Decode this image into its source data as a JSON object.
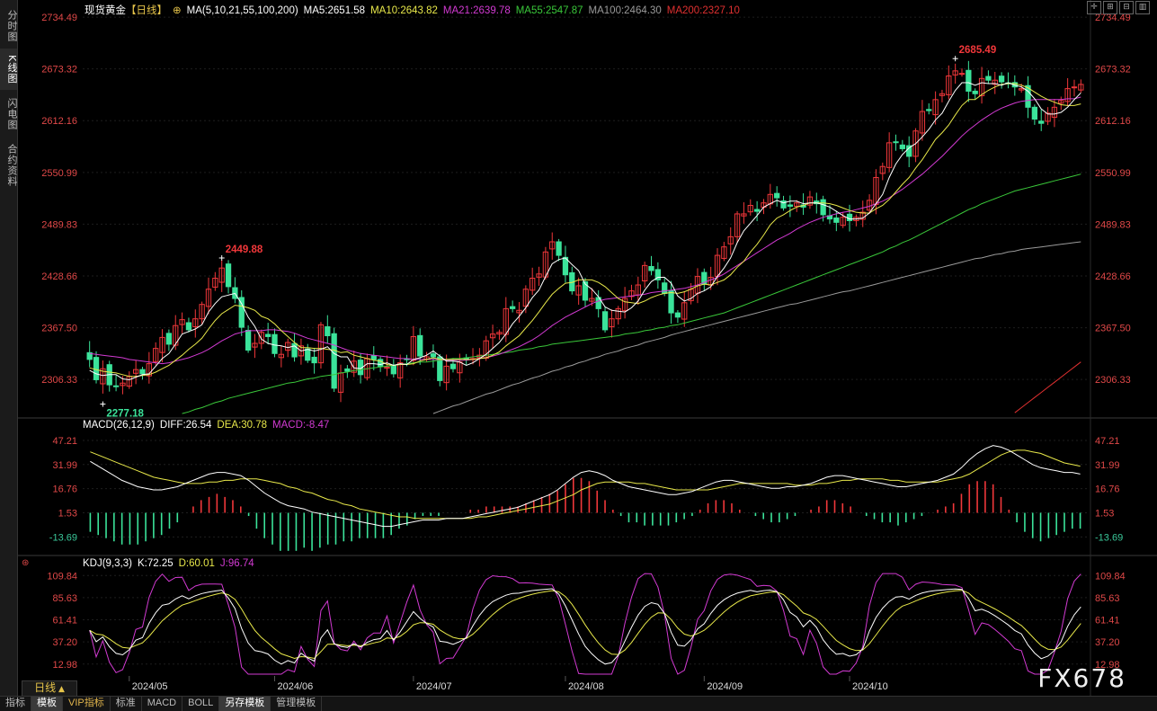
{
  "sidebar": {
    "tabs": [
      {
        "label": "分时图",
        "active": false
      },
      {
        "label": "K线图",
        "active": true
      },
      {
        "label": "闪电图",
        "active": false
      },
      {
        "label": "合约资料",
        "active": false
      }
    ]
  },
  "header": {
    "symbol": "现货黄金",
    "period": "【日线】",
    "ma_params": "MA(5,10,21,55,100,200)",
    "ma5": "MA5:2651.58",
    "ma10": "MA10:2643.82",
    "ma21": "MA21:2639.78",
    "ma55": "MA55:2547.87",
    "ma100": "MA100:2464.30",
    "ma200": "MA200:2327.10"
  },
  "macd_legend": {
    "params": "MACD(26,12,9)",
    "diff": "DIFF:26.54",
    "dea": "DEA:30.78",
    "macd": "MACD:-8.47"
  },
  "kdj_legend": {
    "params": "KDJ(9,3,3)",
    "k": "K:72.25",
    "d": "D:60.01",
    "j": "J:96.74"
  },
  "price_axis": [
    "2734.49",
    "2673.32",
    "2612.16",
    "2550.99",
    "2489.83",
    "2428.66",
    "2367.50",
    "2306.33"
  ],
  "macd_axis": [
    "47.21",
    "31.99",
    "16.76",
    "1.53",
    "-13.69"
  ],
  "kdj_axis": [
    "109.84",
    "85.63",
    "61.41",
    "37.20",
    "12.98"
  ],
  "months": [
    "2024/05",
    "2024/06",
    "2024/07",
    "2024/08",
    "2024/09",
    "2024/10"
  ],
  "annotations": {
    "high": "2685.49",
    "low": "2277.18",
    "mid_high": "2449.88"
  },
  "bottom_tabs": [
    {
      "label": "指标",
      "active": false,
      "vip": false
    },
    {
      "label": "模板",
      "active": true,
      "vip": false
    },
    {
      "label": "VIP指标",
      "active": false,
      "vip": true
    },
    {
      "label": "标准",
      "active": false,
      "vip": false
    },
    {
      "label": "MACD",
      "active": false,
      "vip": false
    },
    {
      "label": "BOLL",
      "active": false,
      "vip": false
    },
    {
      "label": "另存模板",
      "active": true,
      "vip": false
    },
    {
      "label": "管理模板",
      "active": false,
      "vip": false
    }
  ],
  "period_label": "日线",
  "watermark": "FX678",
  "colors": {
    "up": "#f0373a",
    "down": "#3be39a",
    "ma5": "#ffffff",
    "ma10": "#e8e84a",
    "ma21": "#d23ad2",
    "ma55": "#3ac83a",
    "ma100": "#9a9a9a",
    "ma200": "#e03030",
    "axis_text": "#e04848",
    "grid": "#1e1e1e"
  },
  "chart_data": {
    "type": "candlestick",
    "price_range": [
      2277.18,
      2734.49
    ],
    "closes": [
      2330,
      2306,
      2319,
      2300,
      2298,
      2302,
      2310,
      2318,
      2313,
      2325,
      2343,
      2356,
      2348,
      2370,
      2377,
      2365,
      2378,
      2395,
      2413,
      2426,
      2438,
      2416,
      2402,
      2368,
      2341,
      2349,
      2362,
      2357,
      2337,
      2336,
      2350,
      2333,
      2346,
      2329,
      2326,
      2371,
      2358,
      2296,
      2314,
      2316,
      2328,
      2312,
      2331,
      2330,
      2322,
      2321,
      2313,
      2326,
      2330,
      2357,
      2334,
      2333,
      2333,
      2305,
      2322,
      2319,
      2327,
      2331,
      2331,
      2335,
      2352,
      2360,
      2362,
      2390,
      2390,
      2388,
      2413,
      2426,
      2431,
      2457,
      2469,
      2453,
      2430,
      2411,
      2417,
      2400,
      2402,
      2390,
      2365,
      2378,
      2390,
      2402,
      2411,
      2418,
      2441,
      2435,
      2424,
      2408,
      2385,
      2380,
      2397,
      2413,
      2428,
      2419,
      2427,
      2453,
      2463,
      2475,
      2502,
      2502,
      2512,
      2505,
      2515,
      2525,
      2521,
      2509,
      2511,
      2515,
      2510,
      2522,
      2514,
      2501,
      2496,
      2492,
      2498,
      2494,
      2498,
      2504,
      2518,
      2545,
      2558,
      2586,
      2587,
      2579,
      2570,
      2600,
      2623,
      2624,
      2637,
      2644,
      2665,
      2671,
      2668,
      2647,
      2644,
      2662,
      2660,
      2660,
      2658,
      2656,
      2652,
      2650,
      2628,
      2614,
      2609,
      2621,
      2628,
      2636,
      2650,
      2652,
      2655
    ],
    "ma5": [
      2317,
      2313,
      2311,
      2312,
      2312,
      2307,
      2306,
      2309,
      2312,
      2313,
      2322,
      2331,
      2337,
      2348,
      2360,
      2363,
      2366,
      2371,
      2386,
      2396,
      2404,
      2406,
      2408,
      2396,
      2380,
      2369,
      2354,
      2349,
      2347,
      2346,
      2344,
      2346,
      2340,
      2342,
      2340,
      2342,
      2345,
      2337,
      2333,
      2333,
      2320,
      2319,
      2325,
      2325,
      2324,
      2326,
      2323,
      2325,
      2324,
      2330,
      2332,
      2335,
      2340,
      2334,
      2328,
      2328,
      2327,
      2323,
      2326,
      2331,
      2336,
      2343,
      2350,
      2360,
      2372,
      2381,
      2391,
      2403,
      2412,
      2428,
      2443,
      2448,
      2450,
      2442,
      2435,
      2419,
      2413,
      2404,
      2392,
      2388,
      2387,
      2386,
      2391,
      2399,
      2412,
      2422,
      2427,
      2427,
      2420,
      2405,
      2399,
      2402,
      2408,
      2411,
      2416,
      2428,
      2438,
      2450,
      2468,
      2482,
      2491,
      2500,
      2510,
      2514,
      2518,
      2515,
      2517,
      2517,
      2514,
      2515,
      2515,
      2513,
      2510,
      2505,
      2500,
      2496,
      2496,
      2497,
      2503,
      2514,
      2525,
      2545,
      2561,
      2572,
      2580,
      2585,
      2593,
      2602,
      2613,
      2621,
      2635,
      2648,
      2657,
      2657,
      2654,
      2657,
      2656,
      2656,
      2654,
      2657,
      2654,
      2652,
      2647,
      2638,
      2626,
      2620,
      2620,
      2622,
      2628,
      2637,
      2645
    ],
    "ma10": [
      2320,
      2318,
      2316,
      2315,
      2314,
      2312,
      2310,
      2310,
      2311,
      2312,
      2315,
      2319,
      2323,
      2329,
      2335,
      2342,
      2348,
      2355,
      2366,
      2376,
      2384,
      2389,
      2394,
      2393,
      2391,
      2388,
      2381,
      2378,
      2372,
      2364,
      2357,
      2350,
      2344,
      2344,
      2343,
      2343,
      2342,
      2341,
      2338,
      2339,
      2335,
      2333,
      2331,
      2329,
      2328,
      2324,
      2323,
      2324,
      2324,
      2325,
      2328,
      2330,
      2332,
      2330,
      2330,
      2330,
      2330,
      2330,
      2330,
      2331,
      2332,
      2335,
      2339,
      2346,
      2352,
      2358,
      2367,
      2376,
      2386,
      2397,
      2407,
      2414,
      2420,
      2421,
      2424,
      2424,
      2424,
      2421,
      2416,
      2409,
      2402,
      2398,
      2397,
      2396,
      2399,
      2403,
      2406,
      2408,
      2409,
      2408,
      2410,
      2413,
      2417,
      2419,
      2418,
      2421,
      2424,
      2430,
      2439,
      2446,
      2457,
      2466,
      2477,
      2489,
      2497,
      2501,
      2506,
      2510,
      2512,
      2515,
      2515,
      2515,
      2514,
      2512,
      2509,
      2506,
      2504,
      2503,
      2503,
      2508,
      2512,
      2519,
      2528,
      2537,
      2545,
      2556,
      2566,
      2578,
      2590,
      2598,
      2607,
      2619,
      2630,
      2637,
      2637,
      2643,
      2648,
      2652,
      2655,
      2656,
      2656,
      2654,
      2651,
      2646,
      2641,
      2637,
      2634,
      2631,
      2630,
      2630,
      2632
    ],
    "ma21": [
      2337,
      2336,
      2335,
      2334,
      2333,
      2332,
      2330,
      2329,
      2328,
      2327,
      2326,
      2325,
      2326,
      2328,
      2330,
      2332,
      2335,
      2338,
      2342,
      2347,
      2352,
      2356,
      2360,
      2362,
      2364,
      2364,
      2364,
      2365,
      2365,
      2364,
      2363,
      2361,
      2358,
      2355,
      2353,
      2351,
      2349,
      2347,
      2344,
      2341,
      2339,
      2337,
      2336,
      2335,
      2334,
      2333,
      2332,
      2331,
      2331,
      2330,
      2330,
      2330,
      2330,
      2330,
      2329,
      2329,
      2329,
      2329,
      2330,
      2331,
      2332,
      2334,
      2336,
      2339,
      2342,
      2345,
      2349,
      2353,
      2358,
      2364,
      2370,
      2375,
      2380,
      2384,
      2388,
      2392,
      2396,
      2399,
      2401,
      2402,
      2403,
      2404,
      2405,
      2406,
      2407,
      2409,
      2410,
      2411,
      2412,
      2413,
      2414,
      2416,
      2418,
      2421,
      2424,
      2427,
      2431,
      2436,
      2441,
      2446,
      2451,
      2456,
      2461,
      2466,
      2471,
      2475,
      2479,
      2484,
      2488,
      2492,
      2495,
      2498,
      2500,
      2502,
      2504,
      2505,
      2507,
      2509,
      2511,
      2514,
      2517,
      2521,
      2526,
      2531,
      2537,
      2543,
      2549,
      2556,
      2563,
      2570,
      2578,
      2586,
      2594,
      2601,
      2607,
      2613,
      2618,
      2623,
      2627,
      2630,
      2633,
      2635,
      2636,
      2637,
      2637,
      2637,
      2637,
      2637,
      2638,
      2638,
      2640
    ],
    "ma55": [
      2235,
      2237,
      2239,
      2241,
      2243,
      2245,
      2247,
      2249,
      2251,
      2253,
      2256,
      2258,
      2261,
      2263,
      2266,
      2268,
      2271,
      2273,
      2276,
      2279,
      2281,
      2284,
      2286,
      2288,
      2290,
      2292,
      2294,
      2296,
      2298,
      2300,
      2302,
      2303,
      2305,
      2307,
      2308,
      2310,
      2311,
      2312,
      2314,
      2315,
      2317,
      2318,
      2319,
      2320,
      2321,
      2322,
      2323,
      2324,
      2325,
      2326,
      2327,
      2327,
      2328,
      2329,
      2330,
      2331,
      2331,
      2332,
      2333,
      2334,
      2335,
      2336,
      2337,
      2338,
      2339,
      2341,
      2342,
      2343,
      2345,
      2346,
      2348,
      2349,
      2350,
      2351,
      2352,
      2353,
      2354,
      2355,
      2356,
      2357,
      2358,
      2360,
      2361,
      2362,
      2364,
      2365,
      2367,
      2368,
      2370,
      2371,
      2373,
      2375,
      2377,
      2379,
      2381,
      2383,
      2385,
      2388,
      2391,
      2394,
      2397,
      2400,
      2403,
      2406,
      2409,
      2412,
      2415,
      2418,
      2421,
      2424,
      2427,
      2430,
      2433,
      2436,
      2439,
      2442,
      2445,
      2448,
      2451,
      2454,
      2457,
      2461,
      2464,
      2468,
      2471,
      2475,
      2479,
      2483,
      2487,
      2491,
      2495,
      2499,
      2503,
      2507,
      2510,
      2514,
      2517,
      2520,
      2523,
      2526,
      2529,
      2531,
      2533,
      2535,
      2537,
      2539,
      2541,
      2543,
      2545,
      2547,
      2549
    ],
    "ma100": [
      2130,
      2132,
      2134,
      2136,
      2139,
      2141,
      2143,
      2146,
      2148,
      2150,
      2153,
      2155,
      2157,
      2160,
      2162,
      2165,
      2167,
      2170,
      2172,
      2175,
      2178,
      2180,
      2183,
      2186,
      2188,
      2191,
      2194,
      2196,
      2199,
      2202,
      2205,
      2207,
      2210,
      2213,
      2216,
      2218,
      2221,
      2224,
      2227,
      2230,
      2232,
      2235,
      2238,
      2241,
      2244,
      2246,
      2249,
      2252,
      2255,
      2258,
      2261,
      2263,
      2266,
      2269,
      2272,
      2275,
      2277,
      2280,
      2283,
      2286,
      2289,
      2291,
      2294,
      2297,
      2300,
      2302,
      2305,
      2308,
      2310,
      2313,
      2316,
      2318,
      2321,
      2323,
      2326,
      2328,
      2331,
      2333,
      2336,
      2338,
      2340,
      2343,
      2345,
      2347,
      2350,
      2352,
      2354,
      2356,
      2359,
      2361,
      2363,
      2365,
      2367,
      2369,
      2371,
      2373,
      2375,
      2377,
      2379,
      2381,
      2383,
      2385,
      2387,
      2389,
      2391,
      2393,
      2395,
      2396,
      2398,
      2400,
      2402,
      2404,
      2406,
      2408,
      2410,
      2411,
      2413,
      2415,
      2417,
      2419,
      2421,
      2423,
      2425,
      2427,
      2429,
      2431,
      2433,
      2435,
      2437,
      2439,
      2441,
      2443,
      2445,
      2447,
      2449,
      2450,
      2452,
      2454,
      2455,
      2457,
      2458,
      2460,
      2461,
      2462,
      2463,
      2464,
      2465,
      2466,
      2467,
      2468,
      2469
    ],
    "ma200_tail": [
      2225,
      2231,
      2237,
      2243,
      2249,
      2255,
      2261,
      2267,
      2273,
      2279,
      2285,
      2291,
      2297,
      2303,
      2309,
      2315,
      2321,
      2327
    ],
    "macd_diff": [
      34,
      31,
      28,
      25,
      22,
      20,
      18,
      17,
      16,
      16,
      17,
      18,
      20,
      22,
      24,
      26,
      27,
      27,
      26,
      25,
      22,
      18,
      14,
      11,
      8,
      6,
      5,
      4,
      2,
      1,
      0,
      -1,
      -2,
      -3,
      -4,
      -5,
      -6,
      -7,
      -7,
      -6,
      -5,
      -4,
      -3,
      -3,
      -3,
      -2,
      -2,
      -2,
      -1,
      0,
      1,
      2,
      3,
      4,
      5,
      7,
      9,
      11,
      13,
      16,
      20,
      24,
      27,
      28,
      27,
      25,
      22,
      20,
      18,
      17,
      16,
      15,
      14,
      13,
      13,
      14,
      15,
      17,
      19,
      21,
      22,
      22,
      21,
      20,
      19,
      18,
      17,
      17,
      18,
      18,
      19,
      20,
      22,
      24,
      25,
      25,
      24,
      23,
      22,
      21,
      20,
      19,
      18,
      18,
      19,
      20,
      21,
      22,
      24,
      26,
      30,
      35,
      39,
      42,
      44,
      43,
      41,
      38,
      35,
      32,
      30,
      29,
      28,
      27,
      27,
      26
    ],
    "macd_dea": [
      40,
      38,
      36,
      34,
      32,
      30,
      28,
      26,
      24,
      23,
      22,
      21,
      20,
      20,
      20,
      21,
      21,
      22,
      22,
      23,
      23,
      23,
      22,
      21,
      20,
      18,
      17,
      15,
      14,
      12,
      10,
      9,
      7,
      6,
      4,
      3,
      2,
      1,
      0,
      -1,
      -1,
      -2,
      -2,
      -2,
      -2,
      -2,
      -2,
      -2,
      -2,
      -1,
      -1,
      0,
      1,
      2,
      3,
      4,
      5,
      6,
      7,
      9,
      11,
      13,
      16,
      18,
      20,
      21,
      21,
      21,
      21,
      20,
      20,
      19,
      18,
      17,
      16,
      16,
      16,
      16,
      16,
      17,
      18,
      19,
      20,
      20,
      20,
      20,
      20,
      20,
      20,
      19,
      19,
      19,
      20,
      20,
      21,
      22,
      22,
      23,
      23,
      23,
      23,
      22,
      22,
      21,
      21,
      21,
      21,
      21,
      22,
      23,
      24,
      26,
      29,
      32,
      35,
      38,
      40,
      41,
      41,
      40,
      39,
      37,
      35,
      33,
      32,
      31
    ]
  }
}
